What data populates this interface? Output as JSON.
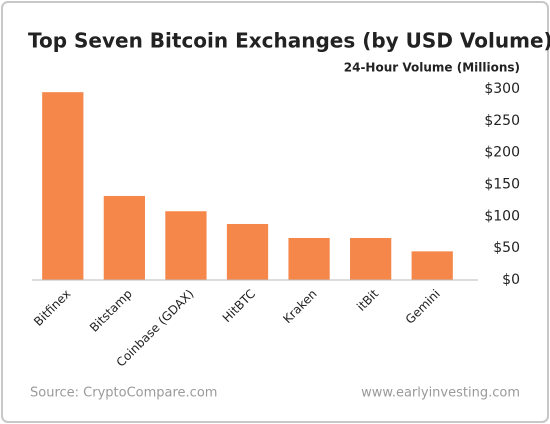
{
  "chart_data": {
    "type": "bar",
    "title": "Top Seven Bitcoin Exchanges (by USD Volume)",
    "y_axis_title": "24-Hour Volume (Millions)",
    "categories": [
      "Bitfinex",
      "Bitstamp",
      "Coinbase (GDAX)",
      "HitBTC",
      "Kraken",
      "itBit",
      "Gemini"
    ],
    "values": [
      295,
      132,
      108,
      88,
      66,
      66,
      45
    ],
    "color": "#f5874a",
    "ylim": [
      0,
      300
    ],
    "yticks": [
      {
        "value": 0,
        "label": "$0"
      },
      {
        "value": 50,
        "label": "$50"
      },
      {
        "value": 100,
        "label": "$100"
      },
      {
        "value": 150,
        "label": "$150"
      },
      {
        "value": 200,
        "label": "$200"
      },
      {
        "value": 250,
        "label": "$250"
      },
      {
        "value": 300,
        "label": "$300"
      }
    ],
    "grid": false,
    "source": "Source: CryptoCompare.com",
    "website": "www.earlyinvesting.com"
  }
}
